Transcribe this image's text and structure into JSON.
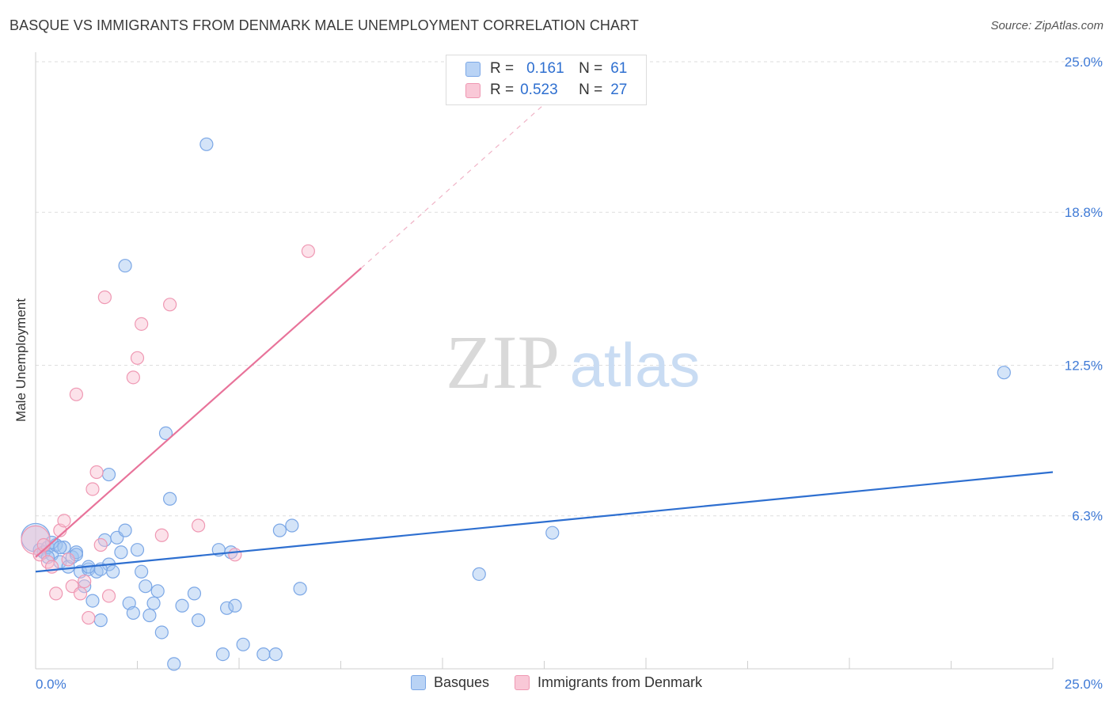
{
  "title": "BASQUE VS IMMIGRANTS FROM DENMARK MALE UNEMPLOYMENT CORRELATION CHART",
  "source": "Source: ZipAtlas.com",
  "watermark": {
    "zip": "ZIP",
    "atlas": "atlas"
  },
  "legend": {
    "r_label": "R =",
    "n_label": "N =",
    "rows": [
      {
        "r": "0.161",
        "n": "61"
      },
      {
        "r": "0.523",
        "n": "27"
      }
    ]
  },
  "chart_data": {
    "type": "scatter",
    "title": "BASQUE VS IMMIGRANTS FROM DENMARK MALE UNEMPLOYMENT CORRELATION CHART",
    "xlabel": "",
    "ylabel": "Male Unemployment",
    "xlim": [
      0,
      25
    ],
    "ylim": [
      0,
      25
    ],
    "x_tick_labels": [
      "0.0%",
      "25.0%"
    ],
    "y_ticks": [
      6.3,
      12.5,
      18.8,
      25.0
    ],
    "y_tick_labels": [
      "6.3%",
      "12.5%",
      "18.8%",
      "25.0%"
    ],
    "colors": {
      "basques": "#7ba7e6",
      "denmark": "#ef98b3",
      "basques_line": "#2e6fd0",
      "denmark_line": "#e8739a",
      "tick_label": "#3f7ad6"
    },
    "series": [
      {
        "name": "Basques",
        "r": 0.161,
        "n": 61,
        "trend": {
          "x0": 0,
          "y0": 4.0,
          "x1": 25,
          "y1": 8.1
        },
        "points": [
          [
            0.0,
            5.4,
            "big"
          ],
          [
            0.1,
            4.9
          ],
          [
            0.2,
            4.8
          ],
          [
            0.3,
            5.0
          ],
          [
            0.4,
            4.7
          ],
          [
            0.5,
            5.1
          ],
          [
            0.6,
            4.4
          ],
          [
            0.7,
            5.0
          ],
          [
            0.8,
            4.2
          ],
          [
            0.9,
            4.6
          ],
          [
            1.0,
            4.8
          ],
          [
            1.1,
            4.0
          ],
          [
            1.2,
            3.4
          ],
          [
            1.3,
            4.1
          ],
          [
            1.4,
            2.8
          ],
          [
            1.5,
            4.0
          ],
          [
            1.6,
            2.0
          ],
          [
            1.7,
            5.3
          ],
          [
            1.8,
            4.3
          ],
          [
            1.9,
            4.0
          ],
          [
            2.0,
            5.4
          ],
          [
            2.1,
            4.8
          ],
          [
            2.2,
            5.7
          ],
          [
            2.3,
            2.7
          ],
          [
            2.4,
            2.3
          ],
          [
            2.5,
            4.9
          ],
          [
            2.6,
            4.0
          ],
          [
            2.7,
            3.4
          ],
          [
            2.8,
            2.2
          ],
          [
            2.9,
            2.7
          ],
          [
            3.0,
            3.2
          ],
          [
            3.1,
            1.5
          ],
          [
            3.2,
            9.7
          ],
          [
            3.3,
            7.0
          ],
          [
            3.4,
            0.2
          ],
          [
            3.6,
            2.6
          ],
          [
            3.9,
            3.1
          ],
          [
            4.0,
            2.0
          ],
          [
            4.2,
            21.6
          ],
          [
            4.5,
            4.9
          ],
          [
            4.6,
            0.6
          ],
          [
            4.7,
            2.5
          ],
          [
            4.8,
            4.8
          ],
          [
            4.9,
            2.6
          ],
          [
            5.1,
            1.0
          ],
          [
            5.6,
            0.6
          ],
          [
            5.9,
            0.6
          ],
          [
            6.0,
            5.7
          ],
          [
            6.3,
            5.9
          ],
          [
            6.5,
            3.3
          ],
          [
            2.2,
            16.6
          ],
          [
            1.8,
            8.0
          ],
          [
            0.4,
            5.2
          ],
          [
            0.6,
            5.0
          ],
          [
            1.0,
            4.7
          ],
          [
            1.3,
            4.2
          ],
          [
            10.9,
            3.9
          ],
          [
            12.7,
            5.6
          ],
          [
            23.8,
            12.2
          ],
          [
            0.3,
            4.6
          ],
          [
            1.6,
            4.1
          ]
        ]
      },
      {
        "name": "Immigrants from Denmark",
        "r": 0.523,
        "n": 27,
        "trend": {
          "x0": 0,
          "y0": 4.6,
          "x1": 8.0,
          "y1": 16.5,
          "x_dash_end": 13.0,
          "y_dash_end": 24.0
        },
        "points": [
          [
            0.0,
            5.3,
            "big"
          ],
          [
            0.1,
            4.7
          ],
          [
            0.2,
            5.1
          ],
          [
            0.3,
            4.4
          ],
          [
            0.4,
            4.2
          ],
          [
            0.5,
            3.1
          ],
          [
            0.6,
            5.7
          ],
          [
            0.7,
            6.1
          ],
          [
            0.8,
            4.5
          ],
          [
            0.9,
            3.4
          ],
          [
            1.0,
            11.3
          ],
          [
            1.1,
            3.1
          ],
          [
            1.2,
            3.6
          ],
          [
            1.3,
            2.1
          ],
          [
            1.4,
            7.4
          ],
          [
            1.5,
            8.1
          ],
          [
            1.6,
            5.1
          ],
          [
            1.7,
            15.3
          ],
          [
            1.8,
            3.0
          ],
          [
            2.4,
            12.0
          ],
          [
            2.5,
            12.8
          ],
          [
            2.6,
            14.2
          ],
          [
            3.1,
            5.5
          ],
          [
            3.3,
            15.0
          ],
          [
            4.0,
            5.9
          ],
          [
            4.9,
            4.7
          ],
          [
            6.7,
            17.2
          ]
        ]
      }
    ]
  },
  "bottom_legend": [
    "Basques",
    "Immigrants from Denmark"
  ]
}
